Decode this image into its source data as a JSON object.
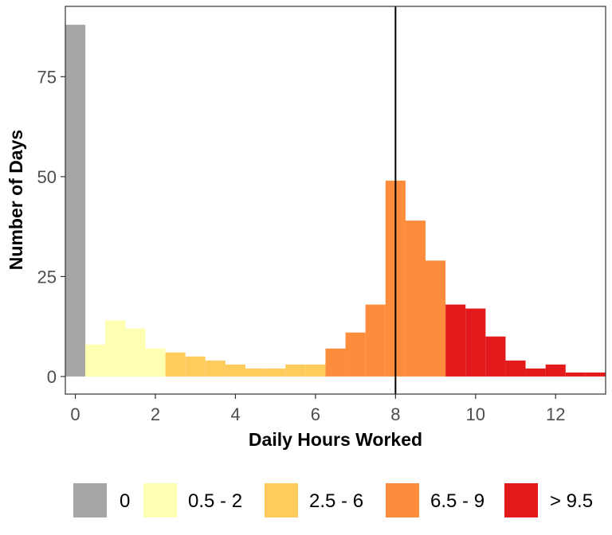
{
  "chart_data": {
    "type": "bar",
    "title": "",
    "xlabel": "Daily Hours Worked",
    "ylabel": "Number of Days",
    "xlim": [
      -0.25,
      13.25
    ],
    "ylim": [
      -4.4,
      92.6
    ],
    "x_ticks": [
      {
        "value": 0,
        "label": "0"
      },
      {
        "value": 2,
        "label": "2"
      },
      {
        "value": 4,
        "label": "4"
      },
      {
        "value": 6,
        "label": "6"
      },
      {
        "value": 8,
        "label": "8"
      },
      {
        "value": 10,
        "label": "10"
      },
      {
        "value": 12,
        "label": "12"
      }
    ],
    "y_ticks": [
      {
        "value": 0,
        "label": "0"
      },
      {
        "value": 25,
        "label": "25"
      },
      {
        "value": 50,
        "label": "50"
      },
      {
        "value": 75,
        "label": "75"
      }
    ],
    "bin_width": 0.5,
    "bins": [
      {
        "x": 0,
        "value": 88,
        "group": "0"
      },
      {
        "x": 0.5,
        "value": 8,
        "group": "0.5 - 2"
      },
      {
        "x": 1,
        "value": 14,
        "group": "0.5 - 2"
      },
      {
        "x": 1.5,
        "value": 12,
        "group": "0.5 - 2"
      },
      {
        "x": 2,
        "value": 7,
        "group": "0.5 - 2"
      },
      {
        "x": 2.5,
        "value": 6,
        "group": "2.5 - 6"
      },
      {
        "x": 3,
        "value": 5,
        "group": "2.5 - 6"
      },
      {
        "x": 3.5,
        "value": 4,
        "group": "2.5 - 6"
      },
      {
        "x": 4,
        "value": 3,
        "group": "2.5 - 6"
      },
      {
        "x": 4.5,
        "value": 2,
        "group": "2.5 - 6"
      },
      {
        "x": 5,
        "value": 2,
        "group": "2.5 - 6"
      },
      {
        "x": 5.5,
        "value": 3,
        "group": "2.5 - 6"
      },
      {
        "x": 6,
        "value": 3,
        "group": "2.5 - 6"
      },
      {
        "x": 6.5,
        "value": 7,
        "group": "6.5 - 9"
      },
      {
        "x": 7,
        "value": 11,
        "group": "6.5 - 9"
      },
      {
        "x": 7.5,
        "value": 18,
        "group": "6.5 - 9"
      },
      {
        "x": 8,
        "value": 49,
        "group": "6.5 - 9"
      },
      {
        "x": 8.5,
        "value": 39,
        "group": "6.5 - 9"
      },
      {
        "x": 9,
        "value": 29,
        "group": "6.5 - 9"
      },
      {
        "x": 9.5,
        "value": 18,
        "group": "> 9.5"
      },
      {
        "x": 10,
        "value": 17,
        "group": "> 9.5"
      },
      {
        "x": 10.5,
        "value": 10,
        "group": "> 9.5"
      },
      {
        "x": 11,
        "value": 4,
        "group": "> 9.5"
      },
      {
        "x": 11.5,
        "value": 2,
        "group": "> 9.5"
      },
      {
        "x": 12,
        "value": 3,
        "group": "> 9.5"
      },
      {
        "x": 12.5,
        "value": 1,
        "group": "> 9.5"
      },
      {
        "x": 13,
        "value": 1,
        "group": "> 9.5"
      }
    ],
    "reference_line_x": 8,
    "legend": {
      "position": "bottom",
      "items": [
        {
          "label": "0",
          "color": "#a6a6a6"
        },
        {
          "label": "0.5 - 2",
          "color": "#ffffb2"
        },
        {
          "label": "2.5 - 6",
          "color": "#fecc5c"
        },
        {
          "label": "6.5 - 9",
          "color": "#fd8d3c"
        },
        {
          "label": "> 9.5",
          "color": "#e31a1c"
        }
      ]
    },
    "grid": false
  }
}
